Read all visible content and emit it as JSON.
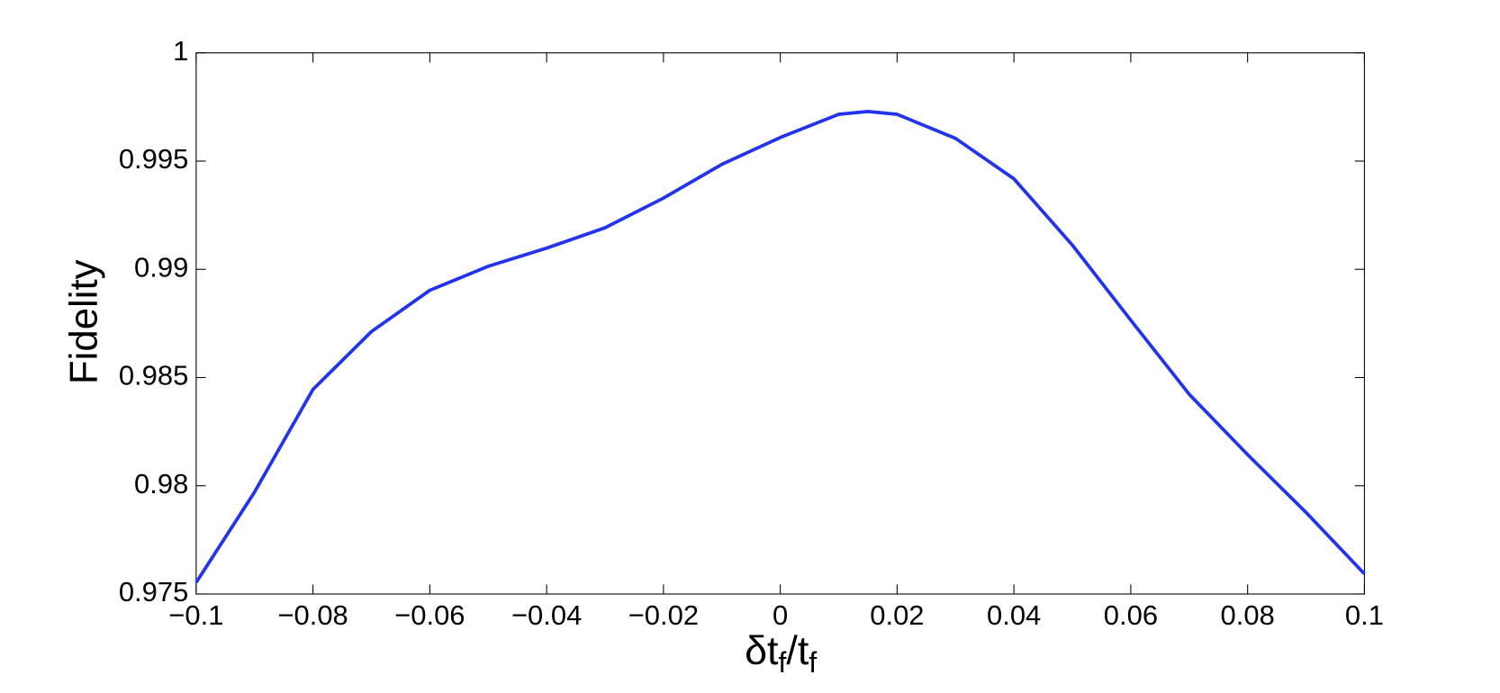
{
  "chart_data": {
    "type": "line",
    "xlabel": [
      "δt",
      "f",
      "/t",
      "f"
    ],
    "ylabel": "Fidelity",
    "x": [
      -0.1,
      -0.09,
      -0.08,
      -0.07,
      -0.06,
      -0.05,
      -0.04,
      -0.03,
      -0.02,
      -0.01,
      0,
      0.01,
      0.015,
      0.02,
      0.03,
      0.04,
      0.05,
      0.06,
      0.07,
      0.08,
      0.09,
      0.1
    ],
    "series": [
      {
        "color": "#2233ee",
        "values": [
          0.97553,
          0.97971,
          0.98445,
          0.98712,
          0.98903,
          0.99014,
          0.99098,
          0.99192,
          0.99329,
          0.99485,
          0.99609,
          0.99716,
          0.99729,
          0.99716,
          0.99605,
          0.99418,
          0.99112,
          0.98765,
          0.98423,
          0.98144,
          0.97877,
          0.97593
        ]
      }
    ],
    "xlim": [
      -0.1,
      0.1
    ],
    "ylim": [
      0.975,
      1
    ],
    "xticks": [
      {
        "value": -0.1,
        "label": "−0.1"
      },
      {
        "value": -0.08,
        "label": "−0.08"
      },
      {
        "value": -0.06,
        "label": "−0.06"
      },
      {
        "value": -0.04,
        "label": "−0.04"
      },
      {
        "value": -0.02,
        "label": "−0.02"
      },
      0,
      0.02,
      0.04,
      0.06,
      0.08,
      0.1
    ],
    "yticks": [
      0.975,
      0.98,
      0.985,
      0.99,
      0.995,
      1
    ],
    "grid": false
  }
}
